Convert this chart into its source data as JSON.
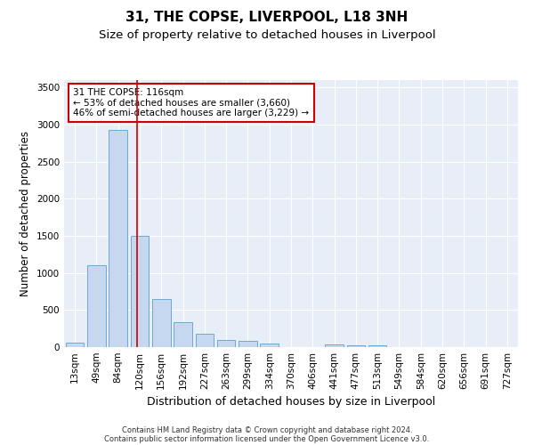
{
  "title": "31, THE COPSE, LIVERPOOL, L18 3NH",
  "subtitle": "Size of property relative to detached houses in Liverpool",
  "xlabel": "Distribution of detached houses by size in Liverpool",
  "ylabel": "Number of detached properties",
  "footer_line1": "Contains HM Land Registry data © Crown copyright and database right 2024.",
  "footer_line2": "Contains public sector information licensed under the Open Government Licence v3.0.",
  "bar_labels": [
    "13sqm",
    "49sqm",
    "84sqm",
    "120sqm",
    "156sqm",
    "192sqm",
    "227sqm",
    "263sqm",
    "299sqm",
    "334sqm",
    "370sqm",
    "406sqm",
    "441sqm",
    "477sqm",
    "513sqm",
    "549sqm",
    "584sqm",
    "620sqm",
    "656sqm",
    "691sqm",
    "727sqm"
  ],
  "bar_values": [
    60,
    1100,
    2930,
    1500,
    650,
    340,
    185,
    100,
    85,
    50,
    0,
    0,
    40,
    25,
    25,
    0,
    0,
    0,
    0,
    0,
    0
  ],
  "bar_color": "#c5d8f0",
  "bar_edge_color": "#6aaad4",
  "background_color": "#e8eef8",
  "grid_color": "#ffffff",
  "marker_color": "#cc0000",
  "annotation_text": "31 THE COPSE: 116sqm\n← 53% of detached houses are smaller (3,660)\n46% of semi-detached houses are larger (3,229) →",
  "annotation_box_color": "#ffffff",
  "annotation_box_edge": "#cc0000",
  "ylim": [
    0,
    3600
  ],
  "yticks": [
    0,
    500,
    1000,
    1500,
    2000,
    2500,
    3000,
    3500
  ],
  "title_fontsize": 11,
  "subtitle_fontsize": 9.5,
  "ylabel_fontsize": 8.5,
  "xlabel_fontsize": 9,
  "tick_fontsize": 7.5,
  "annotation_fontsize": 7.5,
  "footer_fontsize": 6
}
